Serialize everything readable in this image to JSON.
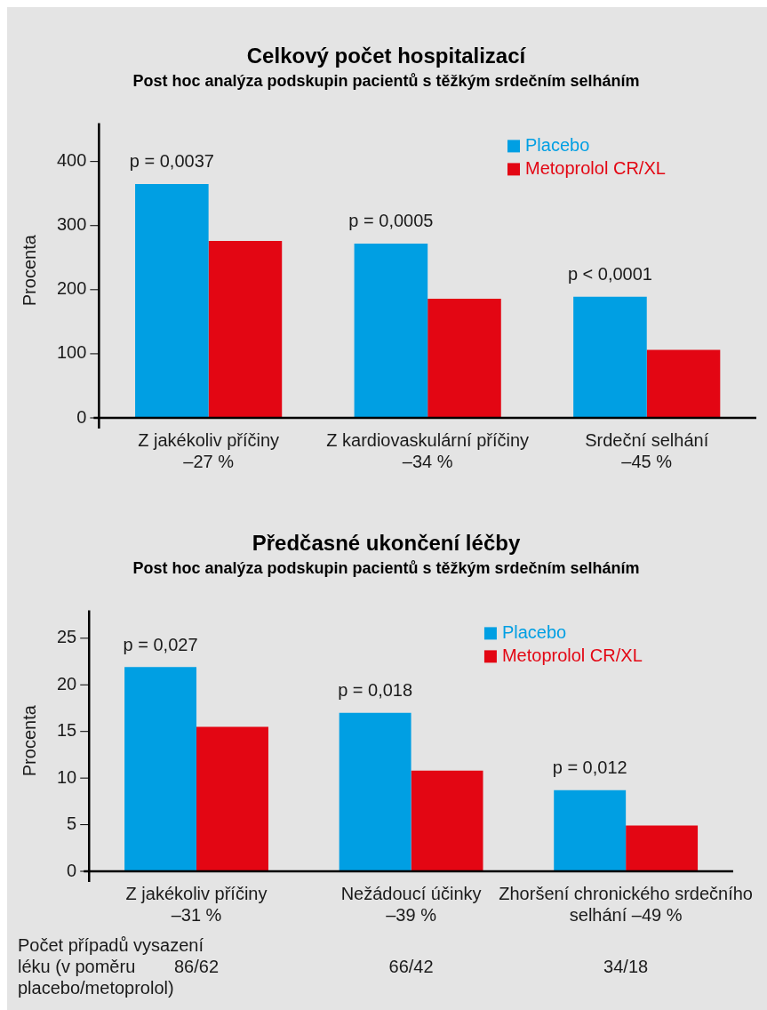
{
  "chart_data": [
    {
      "type": "bar",
      "title": "Celkový počet hospitalizací",
      "subtitle": "Post hoc analýza podskupin pacientů s těžkým srdečním selháním",
      "ylabel": "Procenta",
      "categories": [
        "Z jakékoliv příčiny\n–27 %",
        "Z kardiovaskulární příčiny\n–34 %",
        "Srdeční selhání\n–45 %"
      ],
      "series": [
        {
          "name": "Placebo",
          "color": "#009fe3",
          "values": [
            365,
            272,
            189
          ]
        },
        {
          "name": "Metoprolol CR/XL",
          "color": "#e30613",
          "values": [
            276,
            186,
            106
          ]
        }
      ],
      "ylim": [
        0,
        460
      ],
      "yticks": [
        0,
        100,
        200,
        300,
        400
      ],
      "grid": false,
      "legend": "top right",
      "annotations": [
        {
          "text": "p = 0,0037",
          "x": "Z jakékoliv příčiny\n–27 %",
          "y": 365
        },
        {
          "text": "p = 0,0005",
          "x": "Z kardiovaskulární příčiny\n–34 %",
          "y": 272
        },
        {
          "text": "p < 0,0001",
          "x": "Srdeční selhání\n–45 %",
          "y": 189
        }
      ]
    },
    {
      "type": "bar",
      "title": "Předčasné ukončení léčby",
      "subtitle": "Post hoc analýza podskupin pacientů s těžkým srdečním selháním",
      "ylabel": "Procenta",
      "categories": [
        "Z jakékoliv příčiny\n–31 %",
        "Nežádoucí účinky\n–39 %",
        "Zhoršení chronického srdečního\nselhání –49 %"
      ],
      "series": [
        {
          "name": "Placebo",
          "color": "#009fe3",
          "values": [
            21.9,
            17.0,
            8.7
          ]
        },
        {
          "name": "Metoprolol CR/XL",
          "color": "#e30613",
          "values": [
            15.5,
            10.8,
            4.9
          ]
        }
      ],
      "ylim": [
        0,
        28
      ],
      "yticks": [
        0,
        5,
        10,
        15,
        20,
        25
      ],
      "grid": false,
      "legend": "top right",
      "annotations": [
        {
          "text": "p = 0,027",
          "x": "Z jakékoliv příčiny\n–31 %",
          "y": 21.9
        },
        {
          "text": "p = 0,018",
          "x": "Nežádoucí účinky\n–39 %",
          "y": 17.0
        },
        {
          "text": "p = 0,012",
          "x": "Zhoršení chronického srdečního\nselhání –49 %",
          "y": 8.7
        },
        "Počet případů vysazení\nléku (v poměru\nplacebo/metoprolol)",
        "86/62",
        "66/42",
        "34/18"
      ]
    }
  ]
}
